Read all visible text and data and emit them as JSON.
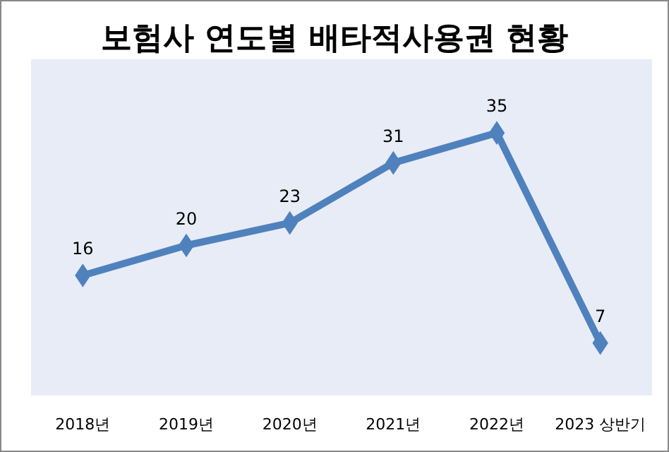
{
  "chart_data": {
    "type": "line",
    "title": "보험사 연도별 배타적사용권 현황",
    "categories": [
      "2018년",
      "2019년",
      "2020년",
      "2021년",
      "2022년",
      "2023 상반기"
    ],
    "series": [
      {
        "color": "#4f81bd",
        "values": [
          16,
          20,
          23,
          31,
          35,
          7
        ]
      }
    ],
    "data_labels": true,
    "marker": "diamond"
  }
}
